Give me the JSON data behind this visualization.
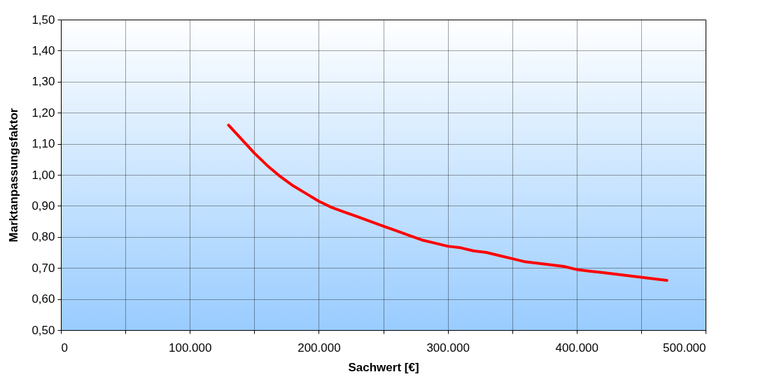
{
  "chart_data": {
    "type": "line",
    "xlabel": "Sachwert [€]",
    "ylabel": "Marktanpassungsfaktor",
    "x": [
      130000,
      140000,
      150000,
      160000,
      170000,
      180000,
      190000,
      200000,
      210000,
      220000,
      230000,
      240000,
      250000,
      260000,
      270000,
      280000,
      290000,
      300000,
      310000,
      320000,
      330000,
      340000,
      350000,
      360000,
      370000,
      380000,
      390000,
      400000,
      410000,
      420000,
      430000,
      440000,
      450000,
      460000,
      470000
    ],
    "series": [
      {
        "color": "#ff0000",
        "values": [
          1.16,
          1.115,
          1.07,
          1.03,
          0.995,
          0.965,
          0.94,
          0.915,
          0.895,
          0.88,
          0.865,
          0.85,
          0.835,
          0.82,
          0.805,
          0.79,
          0.78,
          0.77,
          0.765,
          0.755,
          0.75,
          0.74,
          0.73,
          0.72,
          0.715,
          0.71,
          0.705,
          0.695,
          0.69,
          0.685,
          0.68,
          0.675,
          0.67,
          0.665,
          0.66
        ]
      }
    ],
    "xlim": [
      0,
      500000
    ],
    "xticks": [
      {
        "value": 0,
        "label": "0"
      },
      {
        "value": 50000,
        "label": null
      },
      {
        "value": 100000,
        "label": "100.000"
      },
      {
        "value": 150000,
        "label": null
      },
      {
        "value": 200000,
        "label": "200.000"
      },
      {
        "value": 250000,
        "label": null
      },
      {
        "value": 300000,
        "label": "300.000"
      },
      {
        "value": 350000,
        "label": null
      },
      {
        "value": 400000,
        "label": "400.000"
      },
      {
        "value": 450000,
        "label": null
      },
      {
        "value": 500000,
        "label": "500.000"
      }
    ],
    "ylim": [
      0.5,
      1.5
    ],
    "yticks": [
      {
        "value": 0.5,
        "label": "0,50"
      },
      {
        "value": 0.6,
        "label": "0,60"
      },
      {
        "value": 0.7,
        "label": "0,70"
      },
      {
        "value": 0.8,
        "label": "0,80"
      },
      {
        "value": 0.9,
        "label": "0,90"
      },
      {
        "value": 1.0,
        "label": "1,00"
      },
      {
        "value": 1.1,
        "label": "1,10"
      },
      {
        "value": 1.2,
        "label": "1,20"
      },
      {
        "value": 1.3,
        "label": "1,30"
      },
      {
        "value": 1.4,
        "label": "1,40"
      },
      {
        "value": 1.5,
        "label": "1,50"
      }
    ],
    "grid": true,
    "line_style": "solid",
    "marker": "none"
  }
}
